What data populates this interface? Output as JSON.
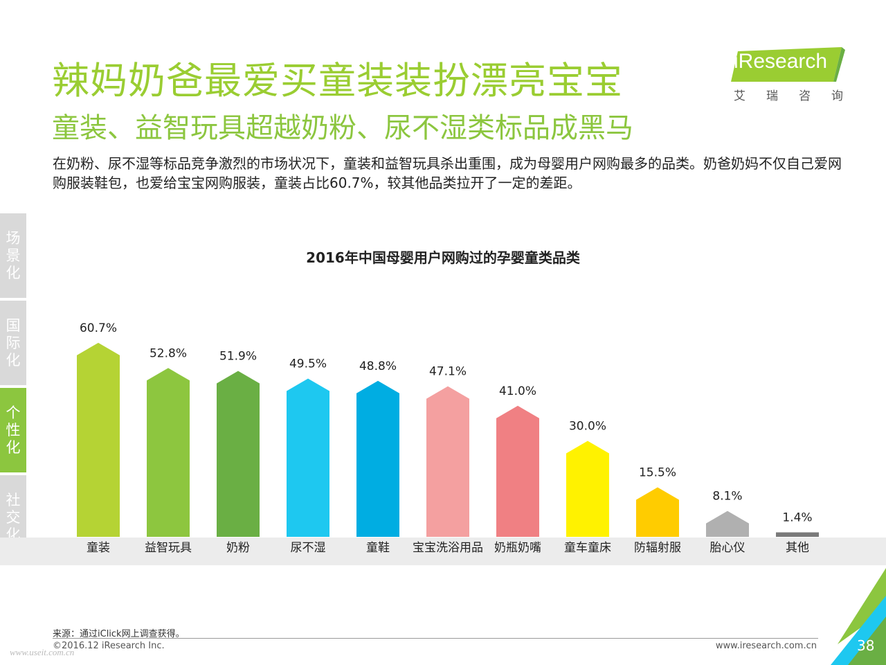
{
  "header": {
    "title": "辣妈奶爸最爱买童装装扮漂亮宝宝",
    "subtitle": "童装、益智玩具超越奶粉、尿不湿类标品成黑马",
    "description": "在奶粉、尿不湿等标品竞争激烈的市场状况下，童装和益智玩具杀出重围，成为母婴用户网购最多的品类。奶爸奶妈不仅自己爱网购服装鞋包，也爱给宝宝网购服装，童装占比60.7%，较其他品类拉开了一定的差距。"
  },
  "logo": {
    "text": "iResearch",
    "subtext": "艾瑞咨询",
    "icon": "iresearch-logo"
  },
  "side_nav": [
    {
      "label": "场景化",
      "active": false
    },
    {
      "label": "国际化",
      "active": false
    },
    {
      "label": "个性化",
      "active": true
    },
    {
      "label": "社交化",
      "active": false
    }
  ],
  "chart_data": {
    "type": "bar",
    "title": "2016年中国母婴用户网购过的孕婴童类品类",
    "categories": [
      "童装",
      "益智玩具",
      "奶粉",
      "尿不湿",
      "童鞋",
      "宝宝洗浴用品",
      "奶瓶奶嘴",
      "童车童床",
      "防辐射服",
      "胎心仪",
      "其他"
    ],
    "values": [
      60.7,
      52.8,
      51.9,
      49.5,
      48.8,
      47.1,
      41.0,
      30.0,
      15.5,
      8.1,
      1.4
    ],
    "value_labels": [
      "60.7%",
      "52.8%",
      "51.9%",
      "49.5%",
      "48.8%",
      "47.1%",
      "41.0%",
      "30.0%",
      "15.5%",
      "8.1%",
      "1.4%"
    ],
    "colors": [
      "#b5d334",
      "#8dc63f",
      "#6aaf44",
      "#1ec8f0",
      "#00ade2",
      "#f4a0a0",
      "#f08083",
      "#fff200",
      "#ffcc00",
      "#b0b0b0",
      "#7a7a7a"
    ],
    "xlabel": "",
    "ylabel": "",
    "ylim": [
      0,
      65
    ],
    "grid": false
  },
  "footer": {
    "source": "来源：通过iClick网上调查获得。",
    "copyright": "©2016.12 iResearch Inc.",
    "url": "www.iresearch.com.cn",
    "page": "38",
    "watermark": "www.useit.com.cn"
  },
  "theme": {
    "accent": "#8cc63f",
    "title_color": "#9acd32",
    "side_inactive": "#d9d9d9"
  }
}
